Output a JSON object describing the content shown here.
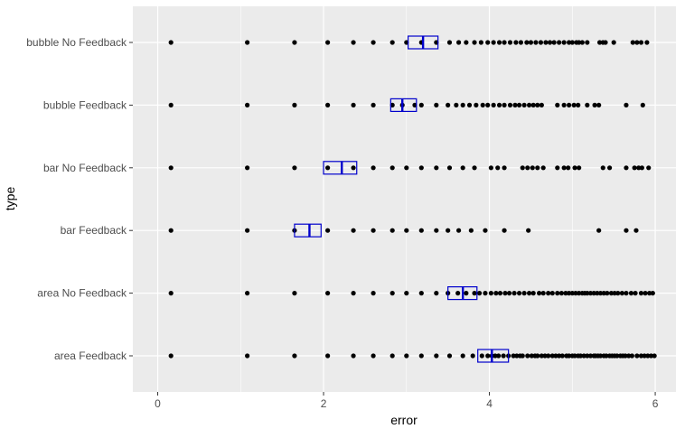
{
  "chart_data": {
    "type": "scatter",
    "xlabel": "error",
    "ylabel": "type",
    "xlim": [
      -0.3,
      6.25
    ],
    "x_ticks": [
      0,
      2,
      4,
      6
    ],
    "x_tick_labels": [
      "0",
      "2",
      "4",
      "6"
    ],
    "grid": true,
    "categories": [
      "area Feedback",
      "area No Feedback",
      "bar Feedback",
      "bar No Feedback",
      "bubble Feedback",
      "bubble No Feedback"
    ],
    "series": [
      {
        "category": "area Feedback",
        "points": [
          0.16,
          1.08,
          1.65,
          2.05,
          2.36,
          2.6,
          2.83,
          3.0,
          3.18,
          3.36,
          3.52,
          3.68,
          3.8,
          3.91,
          3.98,
          4.03,
          4.07,
          4.11,
          4.17,
          4.23,
          4.29,
          4.33,
          4.37,
          4.4,
          4.46,
          4.51,
          4.55,
          4.58,
          4.63,
          4.67,
          4.71,
          4.76,
          4.8,
          4.84,
          4.88,
          4.93,
          4.96,
          5.0,
          5.03,
          5.07,
          5.1,
          5.14,
          5.18,
          5.22,
          5.26,
          5.28,
          5.31,
          5.34,
          5.38,
          5.41,
          5.45,
          5.48,
          5.51,
          5.54,
          5.58,
          5.61,
          5.64,
          5.68,
          5.72,
          5.78,
          5.83,
          5.87,
          5.91,
          5.95,
          5.99
        ],
        "box": {
          "q1": 3.86,
          "median": 4.03,
          "q3": 4.23
        }
      },
      {
        "category": "area No Feedback",
        "points": [
          0.16,
          1.08,
          1.65,
          2.05,
          2.36,
          2.6,
          2.83,
          3.0,
          3.18,
          3.36,
          3.5,
          3.62,
          3.72,
          3.82,
          3.88,
          3.95,
          4.02,
          4.08,
          4.13,
          4.19,
          4.24,
          4.3,
          4.36,
          4.42,
          4.48,
          4.53,
          4.6,
          4.65,
          4.71,
          4.76,
          4.82,
          4.87,
          4.92,
          4.96,
          5.0,
          5.04,
          5.08,
          5.12,
          5.15,
          5.18,
          5.22,
          5.26,
          5.3,
          5.34,
          5.38,
          5.42,
          5.47,
          5.51,
          5.55,
          5.6,
          5.65,
          5.71,
          5.76,
          5.83,
          5.88,
          5.93,
          5.97
        ],
        "box": {
          "q1": 3.5,
          "median": 3.68,
          "q3": 3.85
        }
      },
      {
        "category": "bar Feedback",
        "points": [
          0.16,
          1.08,
          1.65,
          2.05,
          2.36,
          2.6,
          2.83,
          3.0,
          3.18,
          3.36,
          3.5,
          3.63,
          3.78,
          3.95,
          4.18,
          4.47,
          5.32,
          5.65,
          5.77
        ],
        "box": {
          "q1": 1.65,
          "median": 1.83,
          "q3": 1.97
        }
      },
      {
        "category": "bar No Feedback",
        "points": [
          0.16,
          1.08,
          1.65,
          2.05,
          2.36,
          2.6,
          2.83,
          3.0,
          3.18,
          3.36,
          3.52,
          3.68,
          3.82,
          4.02,
          4.1,
          4.18,
          4.4,
          4.46,
          4.52,
          4.58,
          4.65,
          4.82,
          4.9,
          4.95,
          5.03,
          5.08,
          5.37,
          5.45,
          5.65,
          5.75,
          5.8,
          5.84,
          5.92
        ],
        "box": {
          "q1": 2.0,
          "median": 2.22,
          "q3": 2.4
        }
      },
      {
        "category": "bubble Feedback",
        "points": [
          0.16,
          1.08,
          1.65,
          2.05,
          2.36,
          2.6,
          2.83,
          2.95,
          3.1,
          3.18,
          3.36,
          3.5,
          3.6,
          3.68,
          3.76,
          3.84,
          3.92,
          3.98,
          4.05,
          4.12,
          4.18,
          4.25,
          4.31,
          4.36,
          4.42,
          4.48,
          4.53,
          4.58,
          4.63,
          4.82,
          4.9,
          4.96,
          5.02,
          5.07,
          5.18,
          5.27,
          5.32,
          5.65,
          5.85
        ],
        "box": {
          "q1": 2.81,
          "median": 2.95,
          "q3": 3.12
        }
      },
      {
        "category": "bubble No Feedback",
        "points": [
          0.16,
          1.08,
          1.65,
          2.05,
          2.36,
          2.6,
          2.83,
          3.0,
          3.18,
          3.36,
          3.52,
          3.63,
          3.72,
          3.82,
          3.9,
          3.98,
          4.05,
          4.12,
          4.18,
          4.25,
          4.32,
          4.38,
          4.45,
          4.5,
          4.56,
          4.62,
          4.68,
          4.73,
          4.78,
          4.84,
          4.9,
          4.96,
          5.0,
          5.05,
          5.08,
          5.12,
          5.18,
          5.33,
          5.37,
          5.4,
          5.5,
          5.73,
          5.78,
          5.83,
          5.9
        ],
        "box": {
          "q1": 3.02,
          "median": 3.2,
          "q3": 3.38
        }
      }
    ]
  },
  "style": {
    "panel_background": "#EBEBEB",
    "grid_major": "#FFFFFF",
    "point_color": "#000000",
    "box_color": "#0000CC",
    "axis_text": "#4D4D4D",
    "title_text": "#000000"
  }
}
